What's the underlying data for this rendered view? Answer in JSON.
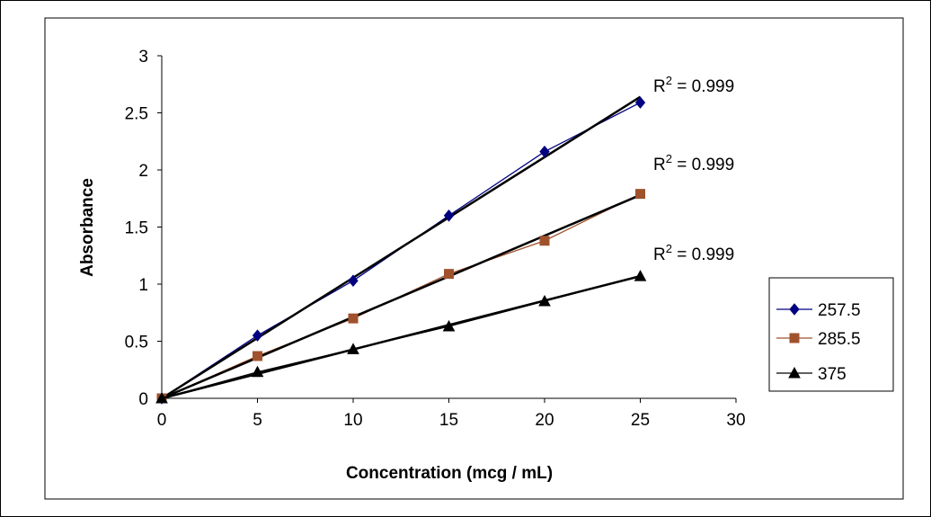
{
  "chart_data": {
    "type": "line",
    "title": "",
    "xlabel": "Concentration (mcg / mL)",
    "ylabel": "Absorbance",
    "xlim": [
      0,
      30
    ],
    "ylim": [
      0,
      3
    ],
    "xticks": [
      0,
      5,
      10,
      15,
      20,
      25,
      30
    ],
    "yticks": [
      0,
      0.5,
      1,
      1.5,
      2,
      2.5,
      3
    ],
    "grid": false,
    "legend_position": "right",
    "x": [
      0,
      5,
      10,
      15,
      20,
      25
    ],
    "series": [
      {
        "name": "257.5",
        "values": [
          0,
          0.55,
          1.03,
          1.6,
          2.16,
          2.59
        ],
        "color": "#000080",
        "marker": "diamond",
        "trendline": {
          "x": [
            0,
            25
          ],
          "y": [
            0,
            2.64
          ]
        },
        "r2_label": "R",
        "r2_sup": "2",
        "r2_value": " = 0.999"
      },
      {
        "name": "285.5",
        "values": [
          0,
          0.37,
          0.7,
          1.09,
          1.38,
          1.79
        ],
        "color": "#A0522D",
        "marker": "square",
        "trendline": {
          "x": [
            0,
            25
          ],
          "y": [
            0,
            1.78
          ]
        },
        "r2_label": "R",
        "r2_sup": "2",
        "r2_value": " = 0.999"
      },
      {
        "name": "375",
        "values": [
          0,
          0.23,
          0.43,
          0.63,
          0.85,
          1.07
        ],
        "color": "#000000",
        "marker": "triangle",
        "trendline": {
          "x": [
            0,
            25
          ],
          "y": [
            0,
            1.07
          ]
        },
        "r2_label": "R",
        "r2_sup": "2",
        "r2_value": " = 0.999"
      }
    ]
  }
}
